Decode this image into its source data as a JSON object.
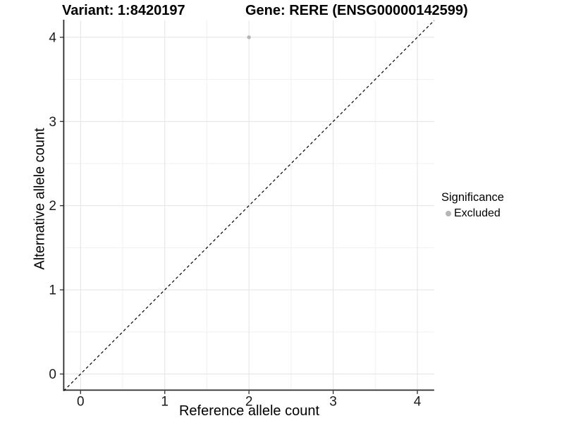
{
  "chart_data": {
    "type": "scatter",
    "title_left": "Variant: 1:8420197",
    "title_right": "Gene: RERE (ENSG00000142599)",
    "xlabel": "Reference allele count",
    "ylabel": "Alternative allele count",
    "xlim": [
      -0.2,
      4.2
    ],
    "ylim": [
      -0.2,
      4.2
    ],
    "xticks": [
      0,
      1,
      2,
      3,
      4
    ],
    "yticks": [
      0,
      1,
      2,
      3,
      4
    ],
    "grid": {
      "major": true,
      "minor": true
    },
    "identity_line": {
      "equation": "y = x",
      "style": "dashed",
      "color": "#000000",
      "x0": -0.2,
      "y0": -0.2,
      "x1": 4.2,
      "y1": 4.2
    },
    "series": [
      {
        "name": "Excluded",
        "color": "#b5b5b5",
        "points": [
          {
            "x": 2,
            "y": 4
          }
        ]
      }
    ]
  },
  "legend": {
    "title": "Significance",
    "position": "right",
    "items": [
      {
        "label": "Excluded",
        "color": "#b5b5b5",
        "marker": "circle"
      }
    ]
  },
  "colors": {
    "background": "#ffffff",
    "grid_major": "#e3e3e3",
    "grid_minor": "#f1f1f1",
    "axis_line": "#2b2b2b",
    "tick_mark": "#2b2b2b",
    "tick_text": "#1a1a1a",
    "point": "#b5b5b5",
    "dashed_line": "#000000"
  }
}
